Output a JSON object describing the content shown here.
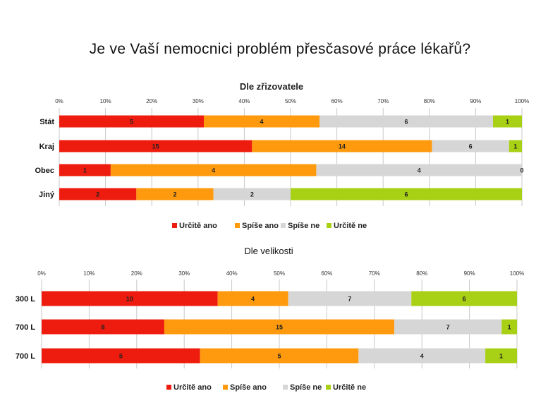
{
  "title": "Je ve Vaší nemocnici problém přesčasové práce lékařů?",
  "colors": {
    "urcite_ano": "#ee1c0e",
    "spise_ano": "#ff9a0e",
    "spise_ne": "#d6d6d6",
    "urcite_ne": "#a8d014",
    "grid": "#c8c8c8"
  },
  "chart_data": [
    {
      "type": "bar",
      "orientation": "horizontal",
      "stacked": "percent",
      "title": "Dle zřizovatele",
      "categories": [
        "Stát",
        "Kraj",
        "Obec",
        "Jiný"
      ],
      "ticks": [
        "0%",
        "10%",
        "20%",
        "30%",
        "40%",
        "50%",
        "60%",
        "70%",
        "80%",
        "90%",
        "100%"
      ],
      "series": [
        {
          "name": "Určitě ano",
          "values": [
            5,
            15,
            1,
            2
          ]
        },
        {
          "name": "Spíše ano",
          "values": [
            4,
            14,
            4,
            2
          ]
        },
        {
          "name": "Spíše ne",
          "values": [
            6,
            6,
            4,
            2
          ]
        },
        {
          "name": "Určitě ne",
          "values": [
            1,
            1,
            0,
            6
          ]
        }
      ],
      "legend_position": "bottom"
    },
    {
      "type": "bar",
      "orientation": "horizontal",
      "stacked": "percent",
      "title": "Dle velikosti",
      "categories": [
        "300 L",
        "700 L",
        "700 L"
      ],
      "ticks": [
        "0%",
        "10%",
        "20%",
        "30%",
        "40%",
        "50%",
        "60%",
        "70%",
        "80%",
        "90%",
        "100%"
      ],
      "series": [
        {
          "name": "Určitě ano",
          "values": [
            10,
            8,
            5
          ]
        },
        {
          "name": "Spíše ano",
          "values": [
            4,
            15,
            5
          ]
        },
        {
          "name": "Spíše ne",
          "values": [
            7,
            7,
            4
          ]
        },
        {
          "name": "Určitě ne",
          "values": [
            6,
            1,
            1
          ]
        }
      ],
      "legend_position": "bottom"
    }
  ]
}
